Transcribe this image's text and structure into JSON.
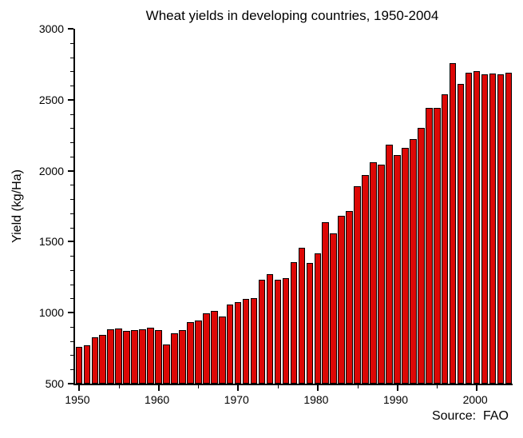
{
  "chart_data": {
    "type": "bar",
    "title": "Wheat yields in developing countries, 1950-2004",
    "xlabel": "",
    "ylabel": "Yield (kg/Ha)",
    "source": "Source:  FAO",
    "ylim": [
      500,
      3000
    ],
    "y_major_ticks": [
      500,
      1000,
      1500,
      2000,
      2500,
      3000
    ],
    "y_minor_step": 100,
    "x_major_ticks": [
      1950,
      1960,
      1970,
      1980,
      1990,
      2000
    ],
    "x_minor_ticks": [
      1955,
      1965,
      1975,
      1985,
      1995
    ],
    "grid": false,
    "legend": false,
    "bar_color": "#dd0806",
    "bar_border": "#000000",
    "categories": [
      1950,
      1951,
      1952,
      1953,
      1954,
      1955,
      1956,
      1957,
      1958,
      1959,
      1960,
      1961,
      1962,
      1963,
      1964,
      1965,
      1966,
      1967,
      1968,
      1969,
      1970,
      1971,
      1972,
      1973,
      1974,
      1975,
      1976,
      1977,
      1978,
      1979,
      1980,
      1981,
      1982,
      1983,
      1984,
      1985,
      1986,
      1987,
      1988,
      1989,
      1990,
      1991,
      1992,
      1993,
      1994,
      1995,
      1996,
      1997,
      1998,
      1999,
      2000,
      2001,
      2002,
      2003,
      2004
    ],
    "values": [
      760,
      770,
      825,
      845,
      885,
      890,
      870,
      880,
      885,
      895,
      880,
      775,
      855,
      875,
      935,
      945,
      995,
      1015,
      975,
      1055,
      1075,
      1095,
      1105,
      1230,
      1270,
      1230,
      1245,
      1355,
      1455,
      1350,
      1420,
      1640,
      1560,
      1680,
      1715,
      1890,
      1970,
      2060,
      2045,
      2185,
      2110,
      2160,
      2225,
      2300,
      2440,
      2445,
      2540,
      2760,
      2610,
      2690,
      2700,
      2680,
      2685,
      2680,
      2690
    ]
  }
}
